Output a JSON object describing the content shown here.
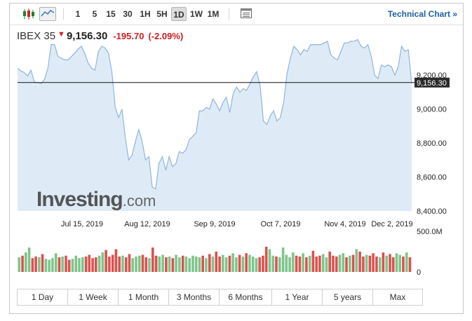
{
  "toolbar": {
    "chart_type_icons": [
      "candlestick-icon",
      "area-chart-icon"
    ],
    "intervals": [
      "1",
      "5",
      "15",
      "30",
      "1H",
      "5H",
      "1D",
      "1W",
      "1M"
    ],
    "selected_interval": "1D",
    "table_icon": "table-view-icon",
    "technical_chart_label": "Technical Chart »"
  },
  "quote": {
    "name": "IBEX 35",
    "direction_arrow": "▼",
    "last": "9,156.30",
    "change": "-195.70",
    "change_pct": "(-2.09%)"
  },
  "logo": {
    "word": "Investing",
    "suffix": ".com"
  },
  "colors": {
    "down": "#d01e1e",
    "up": "#7fc48a",
    "area_fill": "#deebf7",
    "area_line": "#8fb5d9",
    "link": "#1f5ea8"
  },
  "chart_data": {
    "type": "area",
    "price_labels": [
      "9,200.00",
      "9,000.00",
      "8,800.00",
      "8,600.00",
      "8,400.00"
    ],
    "price_ticks": [
      9200,
      9000,
      8800,
      8600,
      8400
    ],
    "ylim": [
      8400,
      9300
    ],
    "current_label": "9,156.30",
    "current_value": 9156.3,
    "date_labels": [
      "Jul 15, 2019",
      "Aug 12, 2019",
      "Sep 9, 2019",
      "Oct 7, 2019",
      "Nov 4, 2019",
      "Dec 2, 2019"
    ],
    "close": [
      9240,
      9225,
      9215,
      9195,
      9230,
      9160,
      9155,
      9150,
      9175,
      9240,
      9380,
      9380,
      9310,
      9300,
      9290,
      9290,
      9310,
      9330,
      9355,
      9370,
      9325,
      9270,
      9240,
      9230,
      9340,
      9370,
      9360,
      9330,
      9220,
      9010,
      8950,
      9000,
      8830,
      8700,
      8730,
      8810,
      8880,
      8810,
      8700,
      8720,
      8540,
      8530,
      8680,
      8720,
      8640,
      8720,
      8660,
      8680,
      8750,
      8740,
      8760,
      8820,
      8840,
      8860,
      8990,
      8990,
      9010,
      9000,
      9060,
      9030,
      8990,
      9040,
      9070,
      8980,
      9090,
      9130,
      9100,
      9120,
      9110,
      9150,
      9190,
      9220,
      9140,
      8930,
      8910,
      8960,
      8990,
      8930,
      8950,
      9040,
      9210,
      9300,
      9370,
      9350,
      9320,
      9350,
      9340,
      9380,
      9380,
      9380,
      9380,
      9390,
      9400,
      9320,
      9300,
      9290,
      9340,
      9390,
      9390,
      9400,
      9400,
      9410,
      9370,
      9360,
      9380,
      9310,
      9200,
      9180,
      9260,
      9250,
      9260,
      9250,
      9200,
      9250,
      9370,
      9340,
      9350,
      9150
    ],
    "volume_labels": [
      "500.0M",
      "0"
    ],
    "volume_ticks": [
      500,
      0
    ],
    "volume": [
      180,
      200,
      240,
      300,
      170,
      190,
      180,
      220,
      160,
      150,
      170,
      230,
      180,
      190,
      200,
      150,
      160,
      200,
      170,
      180,
      190,
      210,
      170,
      180,
      200,
      240,
      270,
      190,
      210,
      280,
      190,
      200,
      180,
      220,
      170,
      190,
      200,
      210,
      180,
      170,
      300,
      200,
      190,
      210,
      180,
      190,
      170,
      210,
      180,
      200,
      190,
      170,
      200,
      190,
      180,
      200,
      170,
      220,
      190,
      250,
      190,
      210,
      180,
      200,
      230,
      180,
      210,
      190,
      230,
      210,
      190,
      170,
      180,
      200,
      310,
      280,
      200,
      190,
      180,
      300,
      210,
      180,
      240,
      200,
      190,
      230,
      180,
      200,
      260,
      190,
      200,
      220,
      180,
      250,
      200,
      190,
      210,
      230,
      180,
      200,
      210,
      280,
      250,
      190,
      210,
      200,
      230,
      190,
      180,
      240,
      200,
      220,
      180,
      230,
      210,
      190,
      240,
      180
    ],
    "volume_up": [
      1,
      0,
      1,
      1,
      0,
      0,
      1,
      0,
      1,
      1,
      1,
      1,
      0,
      1,
      0,
      0,
      1,
      1,
      1,
      1,
      0,
      0,
      0,
      0,
      1,
      1,
      0,
      0,
      0,
      0,
      0,
      1,
      0,
      0,
      1,
      1,
      1,
      0,
      0,
      1,
      0,
      0,
      1,
      1,
      0,
      1,
      0,
      1,
      1,
      0,
      1,
      1,
      1,
      1,
      1,
      0,
      1,
      0,
      1,
      0,
      0,
      1,
      1,
      0,
      1,
      1,
      0,
      1,
      0,
      1,
      1,
      1,
      0,
      0,
      0,
      1,
      1,
      0,
      1,
      1,
      1,
      1,
      1,
      0,
      0,
      1,
      0,
      1,
      0,
      0,
      0,
      1,
      1,
      0,
      0,
      0,
      1,
      1,
      0,
      1,
      0,
      1,
      0,
      0,
      1,
      0,
      0,
      0,
      1,
      0,
      1,
      0,
      0,
      1,
      1,
      0,
      1,
      0
    ]
  },
  "ranges": [
    "1 Day",
    "1 Week",
    "1 Month",
    "3 Months",
    "6 Months",
    "1 Year",
    "5 years",
    "Max"
  ]
}
